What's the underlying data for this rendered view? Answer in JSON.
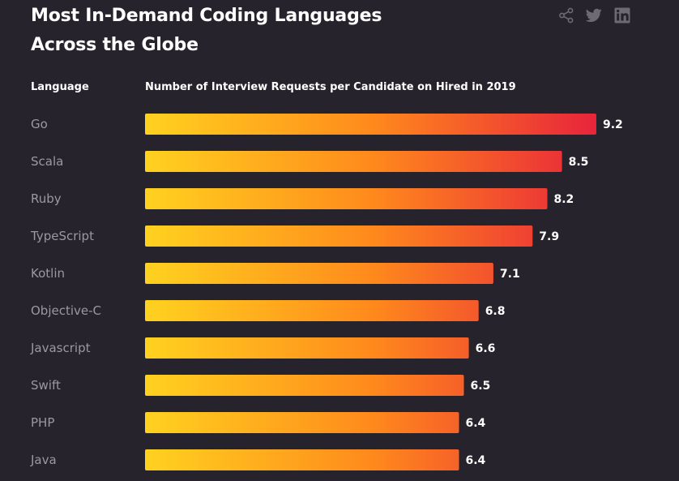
{
  "title_line1": "Most In-Demand Coding Languages",
  "title_line2": "Across the Globe",
  "header": {
    "language": "Language",
    "metric": "Number of Interview Requests per Candidate on Hired in 2019"
  },
  "share_icons": [
    "share-icon",
    "twitter-icon",
    "linkedin-icon"
  ],
  "colors": {
    "background": "#26232c",
    "bar_start": "#ffd21f",
    "bar_mid": "#ff8a1c",
    "bar_end": "#e8243b",
    "category_text": "#9a98a0",
    "icon": "#6c6a72"
  },
  "chart_data": {
    "type": "bar",
    "orientation": "horizontal",
    "title": "Most In-Demand Coding Languages Across the Globe",
    "xlabel": "Number of Interview Requests per Candidate on Hired in 2019",
    "ylabel": "Language",
    "categories": [
      "Go",
      "Scala",
      "Ruby",
      "TypeScript",
      "Kotlin",
      "Objective-C",
      "Javascript",
      "Swift",
      "PHP",
      "Java"
    ],
    "values": [
      9.2,
      8.5,
      8.2,
      7.9,
      7.1,
      6.8,
      6.6,
      6.5,
      6.4,
      6.4
    ],
    "value_labels": [
      "9.2",
      "8.5",
      "8.2",
      "7.9",
      "7.1",
      "6.8",
      "6.6",
      "6.5",
      "6.4",
      "6.4"
    ],
    "xlim": [
      0,
      9.2
    ],
    "grid": false,
    "legend": "none"
  }
}
